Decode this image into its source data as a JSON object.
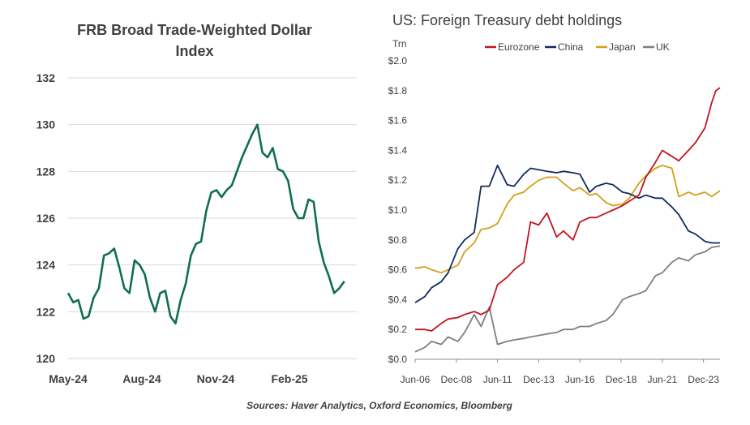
{
  "chart_data": [
    {
      "type": "line",
      "title": "FRB Broad Trade-Weighted Dollar Index",
      "x_tick_labels": [
        "May-24",
        "Aug-24",
        "Nov-24",
        "Feb-25"
      ],
      "y_tick_labels": [
        "120",
        "122",
        "124",
        "126",
        "128",
        "130",
        "132"
      ],
      "ylim": [
        120,
        132
      ],
      "xlim": [
        "2024-05-01",
        "2025-05-31"
      ],
      "grid": "horizontal",
      "color": "#0e6e4f",
      "series": [
        {
          "x": [
            "2024-05-01",
            "2024-05-08",
            "2024-05-15",
            "2024-05-22",
            "2024-05-29",
            "2024-06-05",
            "2024-06-12",
            "2024-06-19",
            "2024-06-26",
            "2024-07-03",
            "2024-07-10",
            "2024-07-17",
            "2024-07-24",
            "2024-07-31",
            "2024-08-07",
            "2024-08-14",
            "2024-08-21",
            "2024-08-28",
            "2024-09-04",
            "2024-09-11",
            "2024-09-18",
            "2024-09-25",
            "2024-10-02",
            "2024-10-09",
            "2024-10-16",
            "2024-10-23",
            "2024-10-30",
            "2024-11-06",
            "2024-11-13",
            "2024-11-20",
            "2024-11-27",
            "2024-12-04",
            "2024-12-11",
            "2024-12-18",
            "2024-12-25",
            "2025-01-01",
            "2025-01-08",
            "2025-01-15",
            "2025-01-22",
            "2025-01-29",
            "2025-02-05",
            "2025-02-12",
            "2025-02-19",
            "2025-02-26",
            "2025-03-05",
            "2025-03-12",
            "2025-03-19",
            "2025-03-26",
            "2025-04-02",
            "2025-04-09",
            "2025-04-16",
            "2025-04-23",
            "2025-04-30",
            "2025-05-07",
            "2025-05-14"
          ],
          "y": [
            122.8,
            122.4,
            122.5,
            121.7,
            121.8,
            122.6,
            123.0,
            124.4,
            124.5,
            124.7,
            123.9,
            123.0,
            122.8,
            124.2,
            124.0,
            123.6,
            122.6,
            122.0,
            122.8,
            122.9,
            121.8,
            121.5,
            122.5,
            123.2,
            124.4,
            124.9,
            125.0,
            126.3,
            127.1,
            127.2,
            126.9,
            127.2,
            127.4,
            128.0,
            128.6,
            129.1,
            129.6,
            130.0,
            128.8,
            128.6,
            129.0,
            128.1,
            128.0,
            127.6,
            126.4,
            126.0,
            126.0,
            126.8,
            126.7,
            125.0,
            124.1,
            123.5,
            122.8,
            123.0,
            123.3
          ]
        }
      ]
    },
    {
      "type": "line",
      "title": "US: Foreign Treasury debt holdings",
      "ylabel": "Trn",
      "x_tick_labels": [
        "Jun-06",
        "Dec-08",
        "Jun-11",
        "Dec-13",
        "Jun-16",
        "Dec-18",
        "Jun-21",
        "Dec-23"
      ],
      "y_tick_labels": [
        "$0.0",
        "$0.2",
        "$0.4",
        "$0.6",
        "$0.8",
        "$1.0",
        "$1.2",
        "$1.4",
        "$1.6",
        "$1.8",
        "$2.0"
      ],
      "ylim": [
        0,
        2.0
      ],
      "xlim": [
        "2006-06",
        "2024-12"
      ],
      "grid": "none",
      "legend": "top",
      "series": [
        {
          "name": "Eurozone",
          "color": "#c0161e",
          "x": [
            "2006-06",
            "2007-01",
            "2007-06",
            "2008-01",
            "2008-06",
            "2009-01",
            "2009-06",
            "2010-01",
            "2010-06",
            "2010-12",
            "2011-06",
            "2012-01",
            "2012-06",
            "2013-01",
            "2013-06",
            "2013-12",
            "2014-06",
            "2015-01",
            "2015-06",
            "2016-01",
            "2016-06",
            "2017-01",
            "2017-06",
            "2018-01",
            "2018-06",
            "2019-01",
            "2019-06",
            "2020-01",
            "2020-06",
            "2021-01",
            "2021-06",
            "2022-01",
            "2022-06",
            "2023-01",
            "2023-06",
            "2024-01",
            "2024-06",
            "2024-09",
            "2024-12"
          ],
          "y": [
            0.2,
            0.2,
            0.19,
            0.24,
            0.27,
            0.28,
            0.3,
            0.32,
            0.3,
            0.33,
            0.5,
            0.55,
            0.6,
            0.65,
            0.92,
            0.9,
            0.98,
            0.82,
            0.86,
            0.8,
            0.92,
            0.95,
            0.95,
            0.98,
            1.0,
            1.03,
            1.06,
            1.1,
            1.22,
            1.32,
            1.4,
            1.36,
            1.33,
            1.4,
            1.45,
            1.55,
            1.72,
            1.8,
            1.82
          ]
        },
        {
          "name": "China",
          "color": "#102c5c",
          "x": [
            "2006-06",
            "2007-01",
            "2007-06",
            "2008-01",
            "2008-06",
            "2009-01",
            "2009-06",
            "2010-01",
            "2010-06",
            "2010-12",
            "2011-06",
            "2012-01",
            "2012-06",
            "2013-01",
            "2013-06",
            "2013-12",
            "2014-06",
            "2015-01",
            "2015-06",
            "2016-01",
            "2016-06",
            "2017-01",
            "2017-06",
            "2018-01",
            "2018-06",
            "2019-01",
            "2019-06",
            "2020-01",
            "2020-06",
            "2021-01",
            "2021-06",
            "2022-01",
            "2022-06",
            "2023-01",
            "2023-06",
            "2024-01",
            "2024-06",
            "2024-12"
          ],
          "y": [
            0.38,
            0.42,
            0.48,
            0.52,
            0.58,
            0.74,
            0.8,
            0.85,
            1.16,
            1.16,
            1.3,
            1.17,
            1.16,
            1.24,
            1.28,
            1.27,
            1.26,
            1.25,
            1.26,
            1.25,
            1.24,
            1.12,
            1.16,
            1.18,
            1.17,
            1.12,
            1.11,
            1.08,
            1.1,
            1.08,
            1.08,
            1.02,
            0.97,
            0.86,
            0.84,
            0.79,
            0.78,
            0.78
          ]
        },
        {
          "name": "Japan",
          "color": "#d4a017",
          "x": [
            "2006-06",
            "2007-01",
            "2007-06",
            "2008-01",
            "2008-06",
            "2009-01",
            "2009-06",
            "2010-01",
            "2010-06",
            "2010-12",
            "2011-06",
            "2012-01",
            "2012-06",
            "2013-01",
            "2013-06",
            "2013-12",
            "2014-06",
            "2015-01",
            "2015-06",
            "2016-01",
            "2016-06",
            "2017-01",
            "2017-06",
            "2018-01",
            "2018-06",
            "2019-01",
            "2019-06",
            "2020-01",
            "2020-06",
            "2021-01",
            "2021-06",
            "2022-01",
            "2022-06",
            "2023-01",
            "2023-06",
            "2024-01",
            "2024-06",
            "2024-12"
          ],
          "y": [
            0.61,
            0.62,
            0.6,
            0.58,
            0.6,
            0.63,
            0.72,
            0.78,
            0.87,
            0.88,
            0.91,
            1.04,
            1.1,
            1.12,
            1.16,
            1.2,
            1.22,
            1.22,
            1.18,
            1.13,
            1.15,
            1.1,
            1.11,
            1.05,
            1.03,
            1.04,
            1.08,
            1.18,
            1.23,
            1.28,
            1.3,
            1.28,
            1.09,
            1.12,
            1.1,
            1.12,
            1.09,
            1.13
          ]
        },
        {
          "name": "UK",
          "color": "#7f7f7f",
          "x": [
            "2006-06",
            "2007-01",
            "2007-06",
            "2008-01",
            "2008-06",
            "2009-01",
            "2009-06",
            "2010-01",
            "2010-06",
            "2010-12",
            "2011-06",
            "2012-01",
            "2012-06",
            "2013-01",
            "2013-06",
            "2013-12",
            "2014-06",
            "2015-01",
            "2015-06",
            "2016-01",
            "2016-06",
            "2017-01",
            "2017-06",
            "2018-01",
            "2018-06",
            "2019-01",
            "2019-06",
            "2020-01",
            "2020-06",
            "2021-01",
            "2021-06",
            "2022-01",
            "2022-06",
            "2023-01",
            "2023-06",
            "2024-01",
            "2024-06",
            "2024-12"
          ],
          "y": [
            0.05,
            0.08,
            0.12,
            0.1,
            0.15,
            0.12,
            0.18,
            0.3,
            0.22,
            0.35,
            0.1,
            0.12,
            0.13,
            0.14,
            0.15,
            0.16,
            0.17,
            0.18,
            0.2,
            0.2,
            0.22,
            0.22,
            0.24,
            0.26,
            0.3,
            0.4,
            0.42,
            0.44,
            0.46,
            0.56,
            0.58,
            0.65,
            0.68,
            0.66,
            0.7,
            0.72,
            0.75,
            0.76
          ]
        }
      ]
    }
  ],
  "source_text": "Sources: Haver Analytics, Oxford Economics, Bloomberg"
}
